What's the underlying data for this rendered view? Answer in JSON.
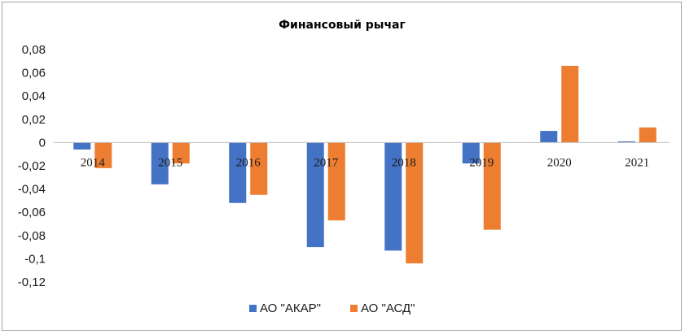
{
  "chart_data": {
    "type": "bar",
    "title": "Финансовый рычаг",
    "xlabel": "",
    "ylabel": "",
    "categories": [
      "2014",
      "2015",
      "2016",
      "2017",
      "2018",
      "2019",
      "2020",
      "2021"
    ],
    "series": [
      {
        "name": "АО \"АКАР\"",
        "color": "#4472C4",
        "values": [
          -0.006,
          -0.036,
          -0.052,
          -0.09,
          -0.093,
          -0.018,
          0.01,
          0.001
        ]
      },
      {
        "name": "АО \"АСД\"",
        "color": "#ED7D31",
        "values": [
          -0.022,
          -0.018,
          -0.045,
          -0.067,
          -0.104,
          -0.075,
          0.066,
          0.013
        ]
      }
    ],
    "ylim": [
      -0.12,
      0.08
    ],
    "yticks": [
      "0,08",
      "0,06",
      "0,04",
      "0,02",
      "0",
      "-0,02",
      "-0,04",
      "-0,06",
      "-0,08",
      "-0,1",
      "-0,12"
    ],
    "grid": false,
    "legend": "bottom"
  }
}
